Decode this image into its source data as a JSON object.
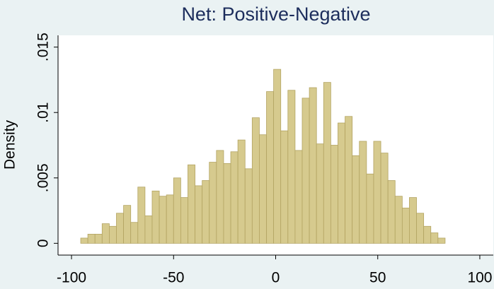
{
  "chart_data": {
    "type": "histogram",
    "title": "Net: Positive-Negative",
    "y_label": "Density",
    "bins": [
      -95.5,
      -92,
      -88.5,
      -85,
      -81.5,
      -78,
      -74.5,
      -71,
      -67.5,
      -64,
      -60.5,
      -57,
      -53.5,
      -50,
      -46.5,
      -43,
      -39.5,
      -36,
      -32.5,
      -29,
      -25.5,
      -22,
      -18.5,
      -15,
      -11.5,
      -8,
      -4.5,
      -1,
      2.5,
      6,
      9.5,
      13,
      16.5,
      20,
      23.5,
      27,
      30.5,
      34,
      37.5,
      41,
      44.5,
      48,
      51.5,
      55,
      58.5,
      62,
      65.5,
      69,
      72.5,
      76,
      79.5,
      83
    ],
    "values": [
      0.0004,
      0.0007,
      0.0007,
      0.0015,
      0.0013,
      0.0023,
      0.0029,
      0.0016,
      0.0043,
      0.0021,
      0.004,
      0.0036,
      0.0037,
      0.005,
      0.0035,
      0.006,
      0.0044,
      0.0048,
      0.0062,
      0.0071,
      0.0061,
      0.007,
      0.0079,
      0.0057,
      0.0096,
      0.0083,
      0.0116,
      0.0133,
      0.0086,
      0.0117,
      0.0071,
      0.0111,
      0.0119,
      0.0076,
      0.0123,
      0.0075,
      0.0092,
      0.0097,
      0.0067,
      0.0078,
      0.0053,
      0.0078,
      0.0069,
      0.0048,
      0.0036,
      0.0027,
      0.0035,
      0.0023,
      0.0013,
      0.0008,
      0.0004
    ],
    "color": "#d6ca8e",
    "edge_color": "#b3a462",
    "xlim": [
      -106.6,
      106.6
    ],
    "xticks": [
      -100,
      -50,
      0,
      50,
      100
    ],
    "ylim": [
      -0.0009,
      0.0159
    ],
    "yticks": [
      {
        "value": 0,
        "label": "0"
      },
      {
        "value": 0.005,
        "label": ".005"
      },
      {
        "value": 0.01,
        "label": ".01"
      },
      {
        "value": 0.015,
        "label": ".015"
      }
    ]
  }
}
